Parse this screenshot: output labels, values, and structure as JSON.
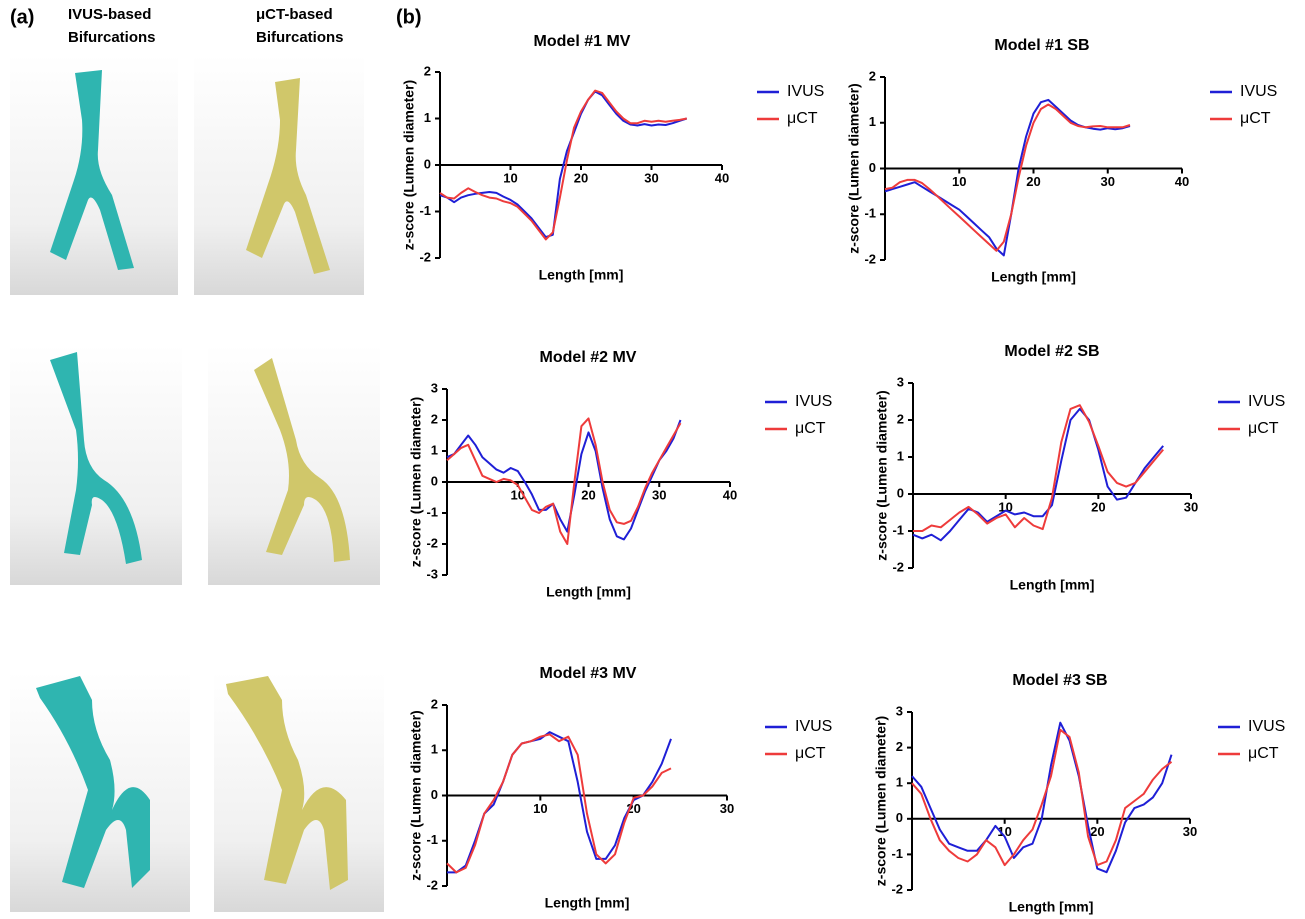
{
  "panels": {
    "a": {
      "label": "(a)",
      "columns": [
        [
          "IVUS-based",
          "Bifurcations"
        ],
        [
          "μCT-based",
          "Bifurcations"
        ]
      ]
    },
    "b": {
      "label": "(b)"
    }
  },
  "chart_data": [
    {
      "type": "line",
      "title": "Model #1 MV",
      "xlabel": "Length [mm]",
      "ylabel": "z-score (Lumen diameter)",
      "x": [
        0,
        1,
        2,
        3,
        4,
        5,
        6,
        7,
        8,
        9,
        10,
        11,
        12,
        13,
        14,
        15,
        16,
        17,
        18,
        19,
        20,
        21,
        22,
        23,
        24,
        25,
        26,
        27,
        28,
        29,
        30,
        31,
        32,
        33,
        34,
        35
      ],
      "series": [
        {
          "name": "IVUS",
          "color": "#1f1fd6",
          "values": [
            -0.65,
            -0.7,
            -0.8,
            -0.7,
            -0.65,
            -0.62,
            -0.6,
            -0.58,
            -0.6,
            -0.68,
            -0.75,
            -0.85,
            -1.0,
            -1.15,
            -1.35,
            -1.55,
            -1.5,
            -0.3,
            0.3,
            0.7,
            1.1,
            1.4,
            1.58,
            1.5,
            1.3,
            1.1,
            0.95,
            0.87,
            0.85,
            0.88,
            0.85,
            0.87,
            0.86,
            0.9,
            0.95,
            1.0
          ]
        },
        {
          "name": "μCT",
          "color": "#ee3b3b",
          "values": [
            -0.6,
            -0.7,
            -0.72,
            -0.6,
            -0.5,
            -0.58,
            -0.65,
            -0.7,
            -0.72,
            -0.78,
            -0.82,
            -0.9,
            -1.05,
            -1.2,
            -1.4,
            -1.6,
            -1.45,
            -0.7,
            0.1,
            0.8,
            1.15,
            1.4,
            1.6,
            1.55,
            1.35,
            1.15,
            1.0,
            0.9,
            0.9,
            0.95,
            0.93,
            0.95,
            0.93,
            0.95,
            0.97,
            1.0
          ]
        }
      ],
      "xlim": [
        0,
        40
      ],
      "xticks": [
        10,
        20,
        30,
        40
      ],
      "ylim": [
        -2,
        2
      ],
      "yticks": [
        -2,
        -1,
        0,
        1,
        2
      ]
    },
    {
      "type": "line",
      "title": "Model #1 SB",
      "xlabel": "Length [mm]",
      "ylabel": "z-score (Lumen diameter)",
      "x": [
        0,
        1,
        2,
        3,
        4,
        5,
        6,
        7,
        8,
        9,
        10,
        11,
        12,
        13,
        14,
        15,
        16,
        17,
        18,
        19,
        20,
        21,
        22,
        23,
        24,
        25,
        26,
        27,
        28,
        29,
        30,
        31,
        32,
        33
      ],
      "series": [
        {
          "name": "IVUS",
          "color": "#1f1fd6",
          "values": [
            -0.5,
            -0.45,
            -0.4,
            -0.35,
            -0.3,
            -0.4,
            -0.5,
            -0.6,
            -0.7,
            -0.8,
            -0.9,
            -1.05,
            -1.2,
            -1.35,
            -1.5,
            -1.75,
            -1.9,
            -1.0,
            0.0,
            0.7,
            1.2,
            1.45,
            1.5,
            1.35,
            1.2,
            1.05,
            0.95,
            0.9,
            0.87,
            0.85,
            0.88,
            0.86,
            0.88,
            0.93
          ]
        },
        {
          "name": "μCT",
          "color": "#ee3b3b",
          "values": [
            -0.45,
            -0.42,
            -0.3,
            -0.25,
            -0.25,
            -0.32,
            -0.45,
            -0.6,
            -0.75,
            -0.9,
            -1.05,
            -1.2,
            -1.35,
            -1.5,
            -1.65,
            -1.8,
            -1.6,
            -1.0,
            -0.2,
            0.5,
            1.0,
            1.3,
            1.4,
            1.3,
            1.15,
            1.0,
            0.93,
            0.9,
            0.92,
            0.93,
            0.9,
            0.9,
            0.9,
            0.95
          ]
        }
      ],
      "xlim": [
        0,
        40
      ],
      "xticks": [
        10,
        20,
        30,
        40
      ],
      "ylim": [
        -2,
        2
      ],
      "yticks": [
        -2,
        -1,
        0,
        1,
        2
      ]
    },
    {
      "type": "line",
      "title": "Model #2 MV",
      "xlabel": "Length [mm]",
      "ylabel": "z-score (Lumen diameter)",
      "x": [
        0,
        1,
        2,
        3,
        4,
        5,
        6,
        7,
        8,
        9,
        10,
        11,
        12,
        13,
        14,
        15,
        16,
        17,
        18,
        19,
        20,
        21,
        22,
        23,
        24,
        25,
        26,
        27,
        28,
        29,
        30,
        31,
        32,
        33
      ],
      "series": [
        {
          "name": "IVUS",
          "color": "#1f1fd6",
          "values": [
            0.8,
            0.9,
            1.2,
            1.5,
            1.2,
            0.8,
            0.6,
            0.4,
            0.3,
            0.45,
            0.35,
            0.0,
            -0.4,
            -0.9,
            -0.9,
            -0.7,
            -1.2,
            -1.6,
            -0.4,
            0.9,
            1.6,
            1.0,
            -0.2,
            -1.2,
            -1.75,
            -1.85,
            -1.5,
            -0.9,
            -0.3,
            0.2,
            0.7,
            1.0,
            1.4,
            2.0
          ]
        },
        {
          "name": "μCT",
          "color": "#ee3b3b",
          "values": [
            0.7,
            0.9,
            1.1,
            1.2,
            0.7,
            0.2,
            0.1,
            0.0,
            0.1,
            0.05,
            -0.1,
            -0.5,
            -0.9,
            -1.0,
            -0.8,
            -0.7,
            -1.6,
            -2.0,
            0.0,
            1.8,
            2.05,
            1.2,
            0.0,
            -0.9,
            -1.3,
            -1.35,
            -1.25,
            -0.8,
            -0.2,
            0.3,
            0.7,
            1.1,
            1.5,
            1.9
          ]
        }
      ],
      "xlim": [
        0,
        40
      ],
      "xticks": [
        10,
        20,
        30,
        40
      ],
      "ylim": [
        -3,
        3
      ],
      "yticks": [
        -3,
        -2,
        -1,
        0,
        1,
        2,
        3
      ]
    },
    {
      "type": "line",
      "title": "Model #2 SB",
      "xlabel": "Length [mm]",
      "ylabel": "z-score (Lumen diameter)",
      "x": [
        0,
        1,
        2,
        3,
        4,
        5,
        6,
        7,
        8,
        9,
        10,
        11,
        12,
        13,
        14,
        15,
        16,
        17,
        18,
        19,
        20,
        21,
        22,
        23,
        24,
        25,
        26,
        27
      ],
      "series": [
        {
          "name": "IVUS",
          "color": "#1f1fd6",
          "values": [
            -1.1,
            -1.2,
            -1.1,
            -1.25,
            -1.0,
            -0.7,
            -0.4,
            -0.5,
            -0.75,
            -0.6,
            -0.45,
            -0.55,
            -0.5,
            -0.6,
            -0.6,
            -0.3,
            0.9,
            2.0,
            2.3,
            2.0,
            1.2,
            0.2,
            -0.15,
            -0.1,
            0.3,
            0.7,
            1.0,
            1.3
          ]
        },
        {
          "name": "μCT",
          "color": "#ee3b3b",
          "values": [
            -1.0,
            -1.0,
            -0.85,
            -0.9,
            -0.7,
            -0.5,
            -0.35,
            -0.55,
            -0.8,
            -0.65,
            -0.55,
            -0.9,
            -0.65,
            -0.85,
            -0.95,
            -0.1,
            1.4,
            2.3,
            2.4,
            1.95,
            1.3,
            0.6,
            0.3,
            0.2,
            0.3,
            0.6,
            0.9,
            1.2
          ]
        }
      ],
      "xlim": [
        0,
        30
      ],
      "xticks": [
        10,
        20,
        30
      ],
      "ylim": [
        -2,
        3
      ],
      "yticks": [
        -2,
        -1,
        0,
        1,
        2,
        3
      ]
    },
    {
      "type": "line",
      "title": "Model #3 MV",
      "xlabel": "Length [mm]",
      "ylabel": "z-score (Lumen diameter)",
      "x": [
        0,
        1,
        2,
        3,
        4,
        5,
        6,
        7,
        8,
        9,
        10,
        11,
        12,
        13,
        14,
        15,
        16,
        17,
        18,
        19,
        20,
        21,
        22,
        23,
        24
      ],
      "series": [
        {
          "name": "IVUS",
          "color": "#1f1fd6",
          "values": [
            -1.7,
            -1.7,
            -1.55,
            -1.0,
            -0.4,
            -0.2,
            0.3,
            0.9,
            1.15,
            1.2,
            1.25,
            1.4,
            1.3,
            1.2,
            0.3,
            -0.8,
            -1.4,
            -1.4,
            -1.1,
            -0.5,
            -0.1,
            0.0,
            0.3,
            0.7,
            1.25
          ]
        },
        {
          "name": "μCT",
          "color": "#ee3b3b",
          "values": [
            -1.5,
            -1.7,
            -1.6,
            -1.1,
            -0.4,
            -0.1,
            0.3,
            0.9,
            1.15,
            1.2,
            1.3,
            1.35,
            1.2,
            1.3,
            0.9,
            -0.4,
            -1.3,
            -1.5,
            -1.3,
            -0.6,
            -0.05,
            0.0,
            0.2,
            0.5,
            0.6
          ]
        }
      ],
      "xlim": [
        0,
        30
      ],
      "xticks": [
        10,
        20,
        30
      ],
      "ylim": [
        -2,
        2
      ],
      "yticks": [
        -2,
        -1,
        0,
        1,
        2
      ]
    },
    {
      "type": "line",
      "title": "Model #3 SB",
      "xlabel": "Length [mm]",
      "ylabel": "z-score (Lumen diameter)",
      "x": [
        0,
        1,
        2,
        3,
        4,
        5,
        6,
        7,
        8,
        9,
        10,
        11,
        12,
        13,
        14,
        15,
        16,
        17,
        18,
        19,
        20,
        21,
        22,
        23,
        24,
        25,
        26,
        27,
        28
      ],
      "series": [
        {
          "name": "IVUS",
          "color": "#1f1fd6",
          "values": [
            1.2,
            0.9,
            0.3,
            -0.3,
            -0.7,
            -0.8,
            -0.9,
            -0.9,
            -0.6,
            -0.2,
            -0.5,
            -1.1,
            -0.8,
            -0.7,
            0.0,
            1.5,
            2.7,
            2.2,
            1.2,
            -0.2,
            -1.4,
            -1.5,
            -0.9,
            -0.1,
            0.3,
            0.4,
            0.6,
            1.0,
            1.8
          ]
        },
        {
          "name": "μCT",
          "color": "#ee3b3b",
          "values": [
            1.0,
            0.7,
            0.0,
            -0.6,
            -0.9,
            -1.1,
            -1.2,
            -1.0,
            -0.6,
            -0.8,
            -1.3,
            -1.0,
            -0.6,
            -0.3,
            0.4,
            1.2,
            2.5,
            2.3,
            1.3,
            -0.5,
            -1.3,
            -1.2,
            -0.6,
            0.3,
            0.5,
            0.7,
            1.1,
            1.4,
            1.6
          ]
        }
      ],
      "xlim": [
        0,
        30
      ],
      "xticks": [
        10,
        20,
        30
      ],
      "ylim": [
        -2,
        3
      ],
      "yticks": [
        -2,
        -1,
        0,
        1,
        2,
        3
      ]
    }
  ]
}
